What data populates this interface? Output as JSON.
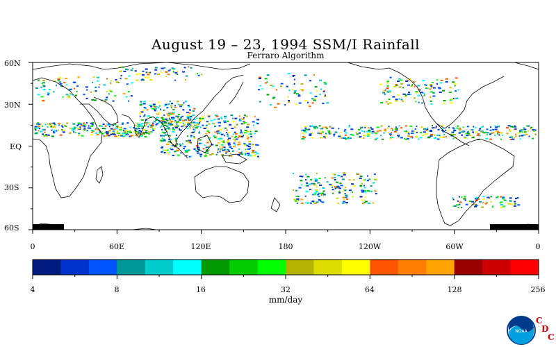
{
  "map": {
    "title": "August 19 – 23, 1994 SSM/I Rainfall",
    "subtitle": "Ferraro Algorithm",
    "lat_labels": [
      "60N",
      "30N",
      "EQ",
      "30S",
      "60S"
    ],
    "lon_labels": [
      "0",
      "60E",
      "120E",
      "180",
      "120W",
      "60W",
      "0"
    ]
  },
  "colorbar": {
    "units": "mm/day",
    "tick_labels": [
      "4",
      "8",
      "16",
      "32",
      "64",
      "128",
      "256"
    ],
    "colors": [
      "#001a80",
      "#0033cc",
      "#0055ff",
      "#009999",
      "#00cccc",
      "#00ffff",
      "#009900",
      "#00cc00",
      "#00ff00",
      "#b3b300",
      "#dddd00",
      "#ffff00",
      "#ff5500",
      "#ff7f00",
      "#ffa500",
      "#990000",
      "#cc0000",
      "#ff0000"
    ]
  },
  "logo": {
    "org_text": "NOAA",
    "letters": [
      "C",
      "D",
      "C"
    ]
  }
}
